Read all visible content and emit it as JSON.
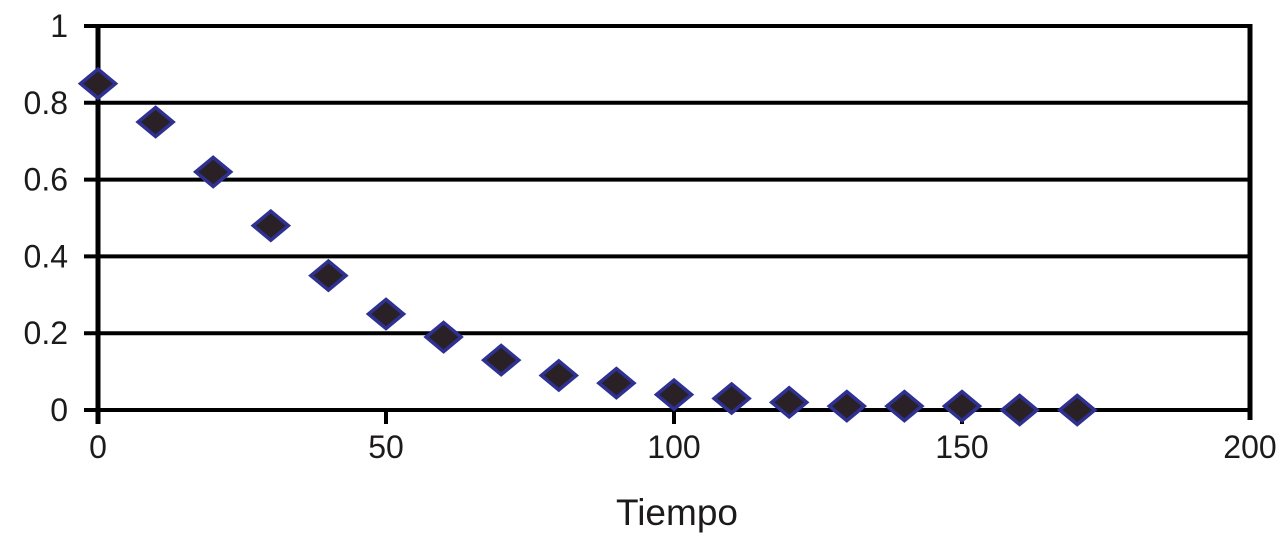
{
  "chart_data": {
    "type": "scatter",
    "title": "",
    "xlabel": "Tiempo",
    "ylabel": "",
    "xlim": [
      0,
      200
    ],
    "ylim": [
      0,
      1
    ],
    "xticks": [
      0,
      50,
      100,
      150,
      200
    ],
    "xtick_labels": [
      "0",
      "50",
      "100",
      "150",
      "200"
    ],
    "yticks": [
      0,
      0.2,
      0.4,
      0.6,
      0.8,
      1
    ],
    "ytick_labels": [
      "0",
      "0.2",
      "0.4",
      "0.6",
      "0.8",
      "1"
    ],
    "grid": "horizontal",
    "legend_position": "none",
    "marker": "diamond",
    "colors": {
      "marker_fill": "#2a2127",
      "marker_stroke": "#2e3192",
      "axis_line": "#000000",
      "grid_line": "#000000",
      "text": "#1c1a1b"
    },
    "series": [
      {
        "name": "",
        "x": [
          0,
          10,
          20,
          30,
          40,
          50,
          60,
          70,
          80,
          90,
          100,
          110,
          120,
          130,
          140,
          150,
          160,
          170
        ],
        "y": [
          0.85,
          0.75,
          0.62,
          0.48,
          0.35,
          0.25,
          0.19,
          0.13,
          0.09,
          0.07,
          0.04,
          0.03,
          0.02,
          0.01,
          0.01,
          0.01,
          0.0,
          0.0
        ]
      }
    ]
  }
}
